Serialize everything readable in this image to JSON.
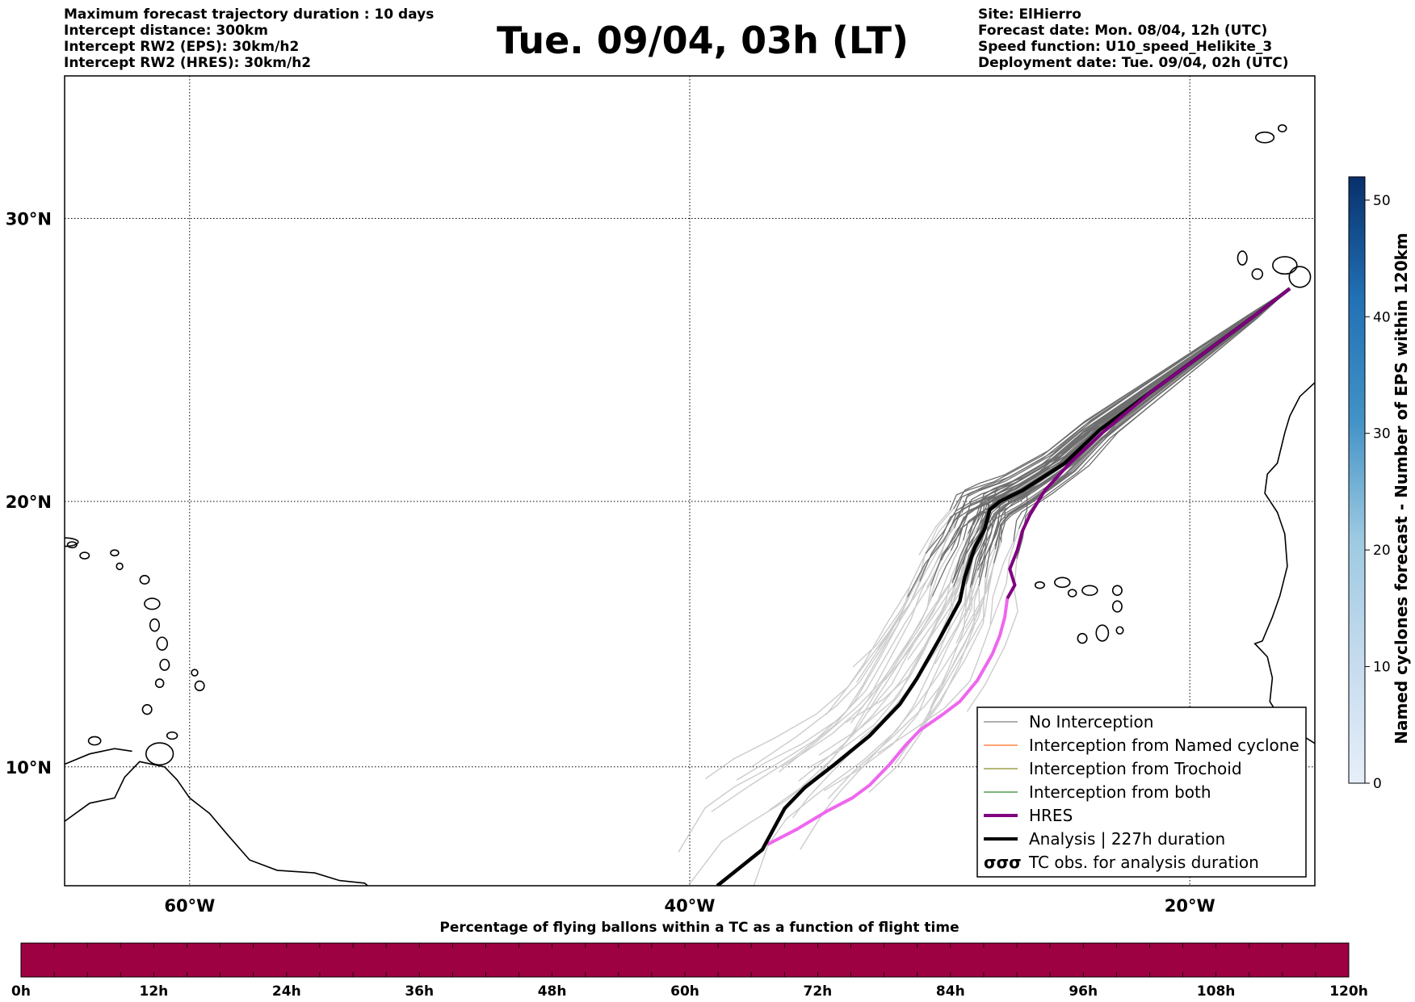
{
  "header_left": [
    "Maximum forecast trajectory duration : 10 days",
    "Intercept distance: 300km",
    "Intercept RW2 (EPS):  30km/h2",
    "Intercept RW2 (HRES): 30km/h2"
  ],
  "title": "Tue. 09/04, 03h (LT)",
  "header_right": [
    "Site: ElHierro",
    "Forecast date: Mon. 08/04, 12h (UTC)",
    "Speed function: U10_speed_Helikite_3",
    "Deployment date: Tue. 09/04, 02h (UTC)"
  ],
  "map": {
    "lat_labels": [
      "30°N",
      "20°N",
      "10°N"
    ],
    "lon_labels": [
      "60°W",
      "40°W",
      "20°W"
    ],
    "lat_values": [
      30,
      20,
      10
    ],
    "lon_values": [
      -60,
      -40,
      -20
    ],
    "extent": {
      "lon_min": -65,
      "lon_max": -15,
      "lat_min": 5.4,
      "lat_max": 34.7
    }
  },
  "legend": [
    {
      "label": "No Interception",
      "color": "#808080",
      "style": "thin"
    },
    {
      "label": "Interception from Named cyclone",
      "color": "#ff6a1f",
      "style": "thin"
    },
    {
      "label": "Interception from Trochoid",
      "color": "#8a8a2a",
      "style": "thin"
    },
    {
      "label": "Interception from both",
      "color": "#2a8a2a",
      "style": "thin"
    },
    {
      "label": "HRES",
      "color": "#800080",
      "style": "thick"
    },
    {
      "label": "Analysis | 227h duration",
      "color": "#000000",
      "style": "thick"
    },
    {
      "label": "TC obs. for analysis duration",
      "color": "#000000",
      "style": "symbol"
    }
  ],
  "colorbar_right": {
    "label": "Named cyclones forecast - Number of EPS within 120km",
    "ticks": [
      "0",
      "10",
      "20",
      "30",
      "40",
      "50"
    ],
    "min": 0,
    "max": 52,
    "color_low": "#e3eef9",
    "color_high": "#08306b"
  },
  "bottom_bar": {
    "title": "Percentage of flying ballons within a TC as a function of flight time",
    "ticks": [
      "0h",
      "12h",
      "24h",
      "36h",
      "48h",
      "60h",
      "72h",
      "84h",
      "96h",
      "108h",
      "120h"
    ],
    "color": "#9e0142"
  },
  "trajectories": {
    "analysis": {
      "color": "#000000",
      "lon": [
        -16.0,
        -17.5,
        -19.5,
        -21.5,
        -23.6,
        -25.0,
        -26.7,
        -27.6,
        -28.0,
        -28.2,
        -28.6,
        -29.0,
        -29.2,
        -30.0,
        -30.9,
        -31.6,
        -32.8,
        -34.2,
        -35.4,
        -36.2,
        -37.1,
        -38.9
      ],
      "lat": [
        27.6,
        26.6,
        25.3,
        24.0,
        22.6,
        21.4,
        20.4,
        20.0,
        19.7,
        19.0,
        18.3,
        17.2,
        16.3,
        14.9,
        13.4,
        12.4,
        11.2,
        10.1,
        9.2,
        8.4,
        6.8,
        5.4
      ]
    },
    "hres_purple": {
      "color": "#800080",
      "lon": [
        -16.0,
        -17.5,
        -19.5,
        -21.5,
        -23.5,
        -24.8,
        -25.8,
        -26.2,
        -26.4,
        -26.7,
        -26.9,
        -27.2,
        -27.0,
        -27.3
      ],
      "lat": [
        27.6,
        26.6,
        25.3,
        24.0,
        22.5,
        21.4,
        20.4,
        19.8,
        19.5,
        18.9,
        18.2,
        17.5,
        16.9,
        16.4
      ]
    },
    "hres_pink": {
      "color": "#ee66ee",
      "lon": [
        -27.3,
        -27.4,
        -27.6,
        -27.9,
        -28.5,
        -29.2,
        -29.9,
        -30.8,
        -31.4,
        -32.0,
        -32.8,
        -33.5,
        -34.5,
        -35.7,
        -36.9
      ],
      "lat": [
        16.4,
        15.7,
        15.0,
        14.3,
        13.3,
        12.5,
        12.0,
        11.4,
        10.8,
        10.1,
        9.3,
        8.8,
        8.3,
        7.6,
        7.0
      ]
    },
    "eps_dark_color": "#6e6e6e",
    "eps_light_color": "#cccccc"
  },
  "islands_caption": []
}
